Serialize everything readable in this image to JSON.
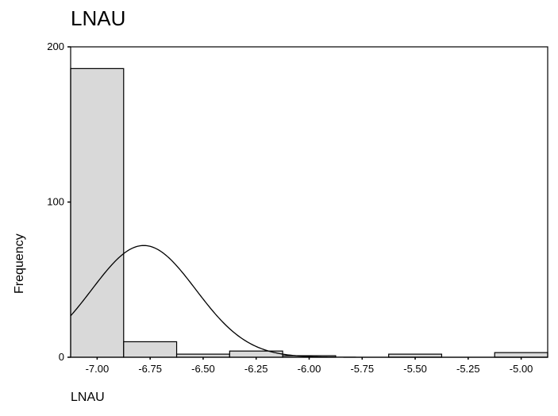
{
  "chart_data": {
    "type": "bar",
    "title": "LNAU",
    "xlabel": "LNAU",
    "ylabel": "Frequency",
    "xlim": [
      -7.125,
      -4.875
    ],
    "ylim": [
      0,
      200
    ],
    "bin_width": 0.25,
    "bins": [
      {
        "x": -7.0,
        "value": 186
      },
      {
        "x": -6.75,
        "value": 10
      },
      {
        "x": -6.5,
        "value": 2
      },
      {
        "x": -6.25,
        "value": 4
      },
      {
        "x": -6.0,
        "value": 1
      },
      {
        "x": -5.75,
        "value": 0
      },
      {
        "x": -5.5,
        "value": 2
      },
      {
        "x": -5.25,
        "value": 0
      },
      {
        "x": -5.0,
        "value": 3
      }
    ],
    "x_ticks": [
      "-7.00",
      "-6.75",
      "-6.50",
      "-6.25",
      "-6.00",
      "-5.75",
      "-5.50",
      "-5.25",
      "-5.00"
    ],
    "y_ticks": [
      "0",
      "100",
      "200"
    ],
    "normal_curve": {
      "mean": -6.78,
      "sd": 0.245,
      "peak": 72
    },
    "bar_fill": "#d9d9d9",
    "bar_stroke": "#000000",
    "grid": false,
    "legend": "none"
  }
}
